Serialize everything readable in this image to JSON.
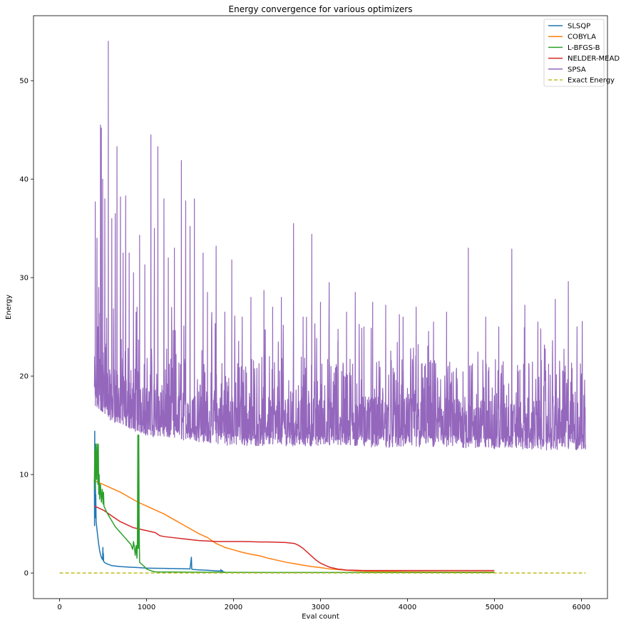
{
  "chart_data": {
    "type": "line",
    "title": "Energy convergence for various optimizers",
    "xlabel": "Eval count",
    "ylabel": "Energy",
    "xlim": [
      -300,
      6300
    ],
    "ylim": [
      -2.6,
      56.6
    ],
    "xticks": [
      0,
      1000,
      2000,
      3000,
      4000,
      5000,
      6000
    ],
    "yticks": [
      0,
      10,
      20,
      30,
      40,
      50
    ],
    "grid": false,
    "legend_position": "top-right",
    "series": [
      {
        "name": "SLSQP",
        "color": "#1f77b4",
        "x": [
          400,
          402,
          404,
          406,
          408,
          410,
          412,
          414,
          416,
          420,
          424,
          430,
          440,
          450,
          460,
          470,
          480,
          490,
          495,
          498,
          500,
          503,
          506,
          510,
          520,
          540,
          570,
          600,
          650,
          700,
          800,
          900,
          1000,
          1100,
          1200,
          1300,
          1400,
          1500,
          1515,
          1518,
          1520,
          1523,
          1530,
          1560,
          1600,
          1650,
          1700,
          1750,
          1800,
          1850,
          1855,
          1860,
          1870,
          1880,
          1890,
          1900
        ],
        "y": [
          9.5,
          4.8,
          14.4,
          7.5,
          12.0,
          6.0,
          10.5,
          5.6,
          8.0,
          5.2,
          4.9,
          4.4,
          3.6,
          2.9,
          2.3,
          1.9,
          1.6,
          1.4,
          1.5,
          2.6,
          1.3,
          2.0,
          1.2,
          1.15,
          1.05,
          0.95,
          0.85,
          0.75,
          0.7,
          0.65,
          0.6,
          0.55,
          0.5,
          0.48,
          0.47,
          0.45,
          0.43,
          0.42,
          1.6,
          0.9,
          0.4,
          0.38,
          0.36,
          0.34,
          0.32,
          0.3,
          0.28,
          0.25,
          0.22,
          0.2,
          0.35,
          0.15,
          0.25,
          0.12,
          0.1,
          0.1
        ]
      },
      {
        "name": "COBYLA",
        "color": "#ff7f0e",
        "x": [
          400,
          420,
          500,
          600,
          700,
          800,
          900,
          1000,
          1100,
          1200,
          1300,
          1400,
          1500,
          1600,
          1700,
          1800,
          1900,
          2000,
          2100,
          2200,
          2300,
          2400,
          2500,
          2600,
          2700,
          2800,
          2900,
          3000,
          3100,
          3200,
          3300,
          3400,
          3500,
          4000,
          4500,
          5000
        ],
        "y": [
          9.5,
          9.3,
          9.0,
          8.6,
          8.2,
          7.7,
          7.2,
          6.8,
          6.4,
          6.0,
          5.5,
          5.0,
          4.5,
          4.0,
          3.6,
          3.0,
          2.6,
          2.35,
          2.1,
          1.9,
          1.75,
          1.5,
          1.3,
          1.1,
          0.95,
          0.8,
          0.65,
          0.55,
          0.42,
          0.35,
          0.28,
          0.22,
          0.18,
          0.12,
          0.1,
          0.1
        ]
      },
      {
        "name": "L-BFGS-B",
        "color": "#2ca02c",
        "x": [
          400,
          405,
          410,
          415,
          420,
          425,
          430,
          435,
          440,
          445,
          450,
          455,
          460,
          470,
          480,
          490,
          500,
          505,
          510,
          520,
          540,
          560,
          580,
          600,
          620,
          640,
          660,
          680,
          700,
          720,
          750,
          780,
          800,
          820,
          840,
          850,
          860,
          870,
          880,
          890,
          895,
          900,
          905,
          910,
          915,
          920,
          930,
          950,
          980,
          1000,
          1030,
          1060,
          1100,
          1150,
          1200,
          1300,
          1500,
          2000,
          3000,
          4000,
          5000
        ],
        "y": [
          9.2,
          12.5,
          8.5,
          13.1,
          11.0,
          9.5,
          13.1,
          12.0,
          9.0,
          13.1,
          8.0,
          10.0,
          7.5,
          9.0,
          7.2,
          8.5,
          7.0,
          8.2,
          6.8,
          6.6,
          6.2,
          5.9,
          5.6,
          5.3,
          5.0,
          4.7,
          4.5,
          4.3,
          4.1,
          3.9,
          3.6,
          3.3,
          3.1,
          2.9,
          2.4,
          3.2,
          2.6,
          1.8,
          2.8,
          1.5,
          3.5,
          14.0,
          2.5,
          14.0,
          4.5,
          1.1,
          1.0,
          0.85,
          0.6,
          0.4,
          0.3,
          0.2,
          0.12,
          0.1,
          0.1,
          0.1,
          0.08,
          0.06,
          0.05,
          0.05,
          0.05
        ]
      },
      {
        "name": "NELDER-MEAD",
        "color": "#d62728",
        "x": [
          400,
          450,
          500,
          550,
          600,
          650,
          700,
          750,
          800,
          850,
          900,
          950,
          1000,
          1050,
          1100,
          1150,
          1200,
          1300,
          1400,
          1500,
          1600,
          1700,
          1800,
          1900,
          2000,
          2100,
          2200,
          2300,
          2400,
          2500,
          2600,
          2700,
          2750,
          2800,
          2850,
          2900,
          2950,
          3000,
          3050,
          3100,
          3150,
          3200,
          3250,
          3300,
          3400,
          3500,
          4000,
          4500,
          5000
        ],
        "y": [
          6.8,
          6.6,
          6.4,
          6.1,
          5.8,
          5.5,
          5.2,
          5.0,
          4.8,
          4.6,
          4.5,
          4.4,
          4.3,
          4.2,
          4.1,
          3.8,
          3.7,
          3.6,
          3.5,
          3.4,
          3.3,
          3.25,
          3.2,
          3.2,
          3.2,
          3.2,
          3.18,
          3.15,
          3.15,
          3.12,
          3.1,
          3.0,
          2.8,
          2.5,
          2.1,
          1.7,
          1.3,
          1.0,
          0.8,
          0.6,
          0.5,
          0.4,
          0.35,
          0.3,
          0.28,
          0.25,
          0.25,
          0.25,
          0.25
        ]
      },
      {
        "name": "SPSA",
        "color": "#9467bd",
        "x_start": 400,
        "x_end": 6050,
        "baseline": [
          [
            400,
            17.5
          ],
          [
            600,
            16.0
          ],
          [
            1000,
            14.5
          ],
          [
            1500,
            14.0
          ],
          [
            2000,
            13.5
          ],
          [
            3000,
            13.5
          ],
          [
            4000,
            13.3
          ],
          [
            5000,
            13.2
          ],
          [
            6050,
            13.0
          ]
        ],
        "spikes": [
          [
            410,
            37.7
          ],
          [
            430,
            34.0
          ],
          [
            450,
            29.0
          ],
          [
            470,
            45.5
          ],
          [
            480,
            45.2
          ],
          [
            495,
            40.0
          ],
          [
            520,
            38.0
          ],
          [
            560,
            54.0
          ],
          [
            600,
            36.0
          ],
          [
            640,
            36.5
          ],
          [
            660,
            43.3
          ],
          [
            700,
            38.2
          ],
          [
            730,
            32.5
          ],
          [
            760,
            38.3
          ],
          [
            800,
            32.5
          ],
          [
            850,
            30.5
          ],
          [
            890,
            27.0
          ],
          [
            920,
            34.3
          ],
          [
            980,
            31.3
          ],
          [
            1050,
            44.5
          ],
          [
            1090,
            35.0
          ],
          [
            1130,
            43.3
          ],
          [
            1200,
            38.0
          ],
          [
            1250,
            32.0
          ],
          [
            1320,
            33.0
          ],
          [
            1400,
            41.9
          ],
          [
            1450,
            37.8
          ],
          [
            1500,
            35.2
          ],
          [
            1550,
            38.0
          ],
          [
            1650,
            32.5
          ],
          [
            1700,
            28.5
          ],
          [
            1800,
            33.2
          ],
          [
            1900,
            26.5
          ],
          [
            1980,
            31.8
          ],
          [
            2100,
            26.0
          ],
          [
            2200,
            28.0
          ],
          [
            2350,
            28.7
          ],
          [
            2450,
            27.0
          ],
          [
            2550,
            28.0
          ],
          [
            2690,
            35.5
          ],
          [
            2800,
            26.0
          ],
          [
            2900,
            34.4
          ],
          [
            3000,
            27.5
          ],
          [
            3100,
            29.5
          ],
          [
            3200,
            23.5
          ],
          [
            3300,
            26.5
          ],
          [
            3400,
            28.5
          ],
          [
            3500,
            25.0
          ],
          [
            3600,
            27.5
          ],
          [
            3750,
            27.2
          ],
          [
            3950,
            26.0
          ],
          [
            4100,
            27.0
          ],
          [
            4300,
            25.5
          ],
          [
            4450,
            26.5
          ],
          [
            4700,
            33.0
          ],
          [
            4900,
            26.0
          ],
          [
            5050,
            25.0
          ],
          [
            5200,
            32.9
          ],
          [
            5350,
            27.2
          ],
          [
            5500,
            25.5
          ],
          [
            5700,
            27.8
          ],
          [
            5850,
            29.6
          ],
          [
            5950,
            25.0
          ],
          [
            6000,
            20.0
          ]
        ],
        "max_value": 54.0
      },
      {
        "name": "Exact Energy",
        "color": "#bcbd22",
        "dashed": true,
        "x": [
          0,
          6050
        ],
        "y": [
          0.0,
          0.0
        ]
      }
    ]
  }
}
